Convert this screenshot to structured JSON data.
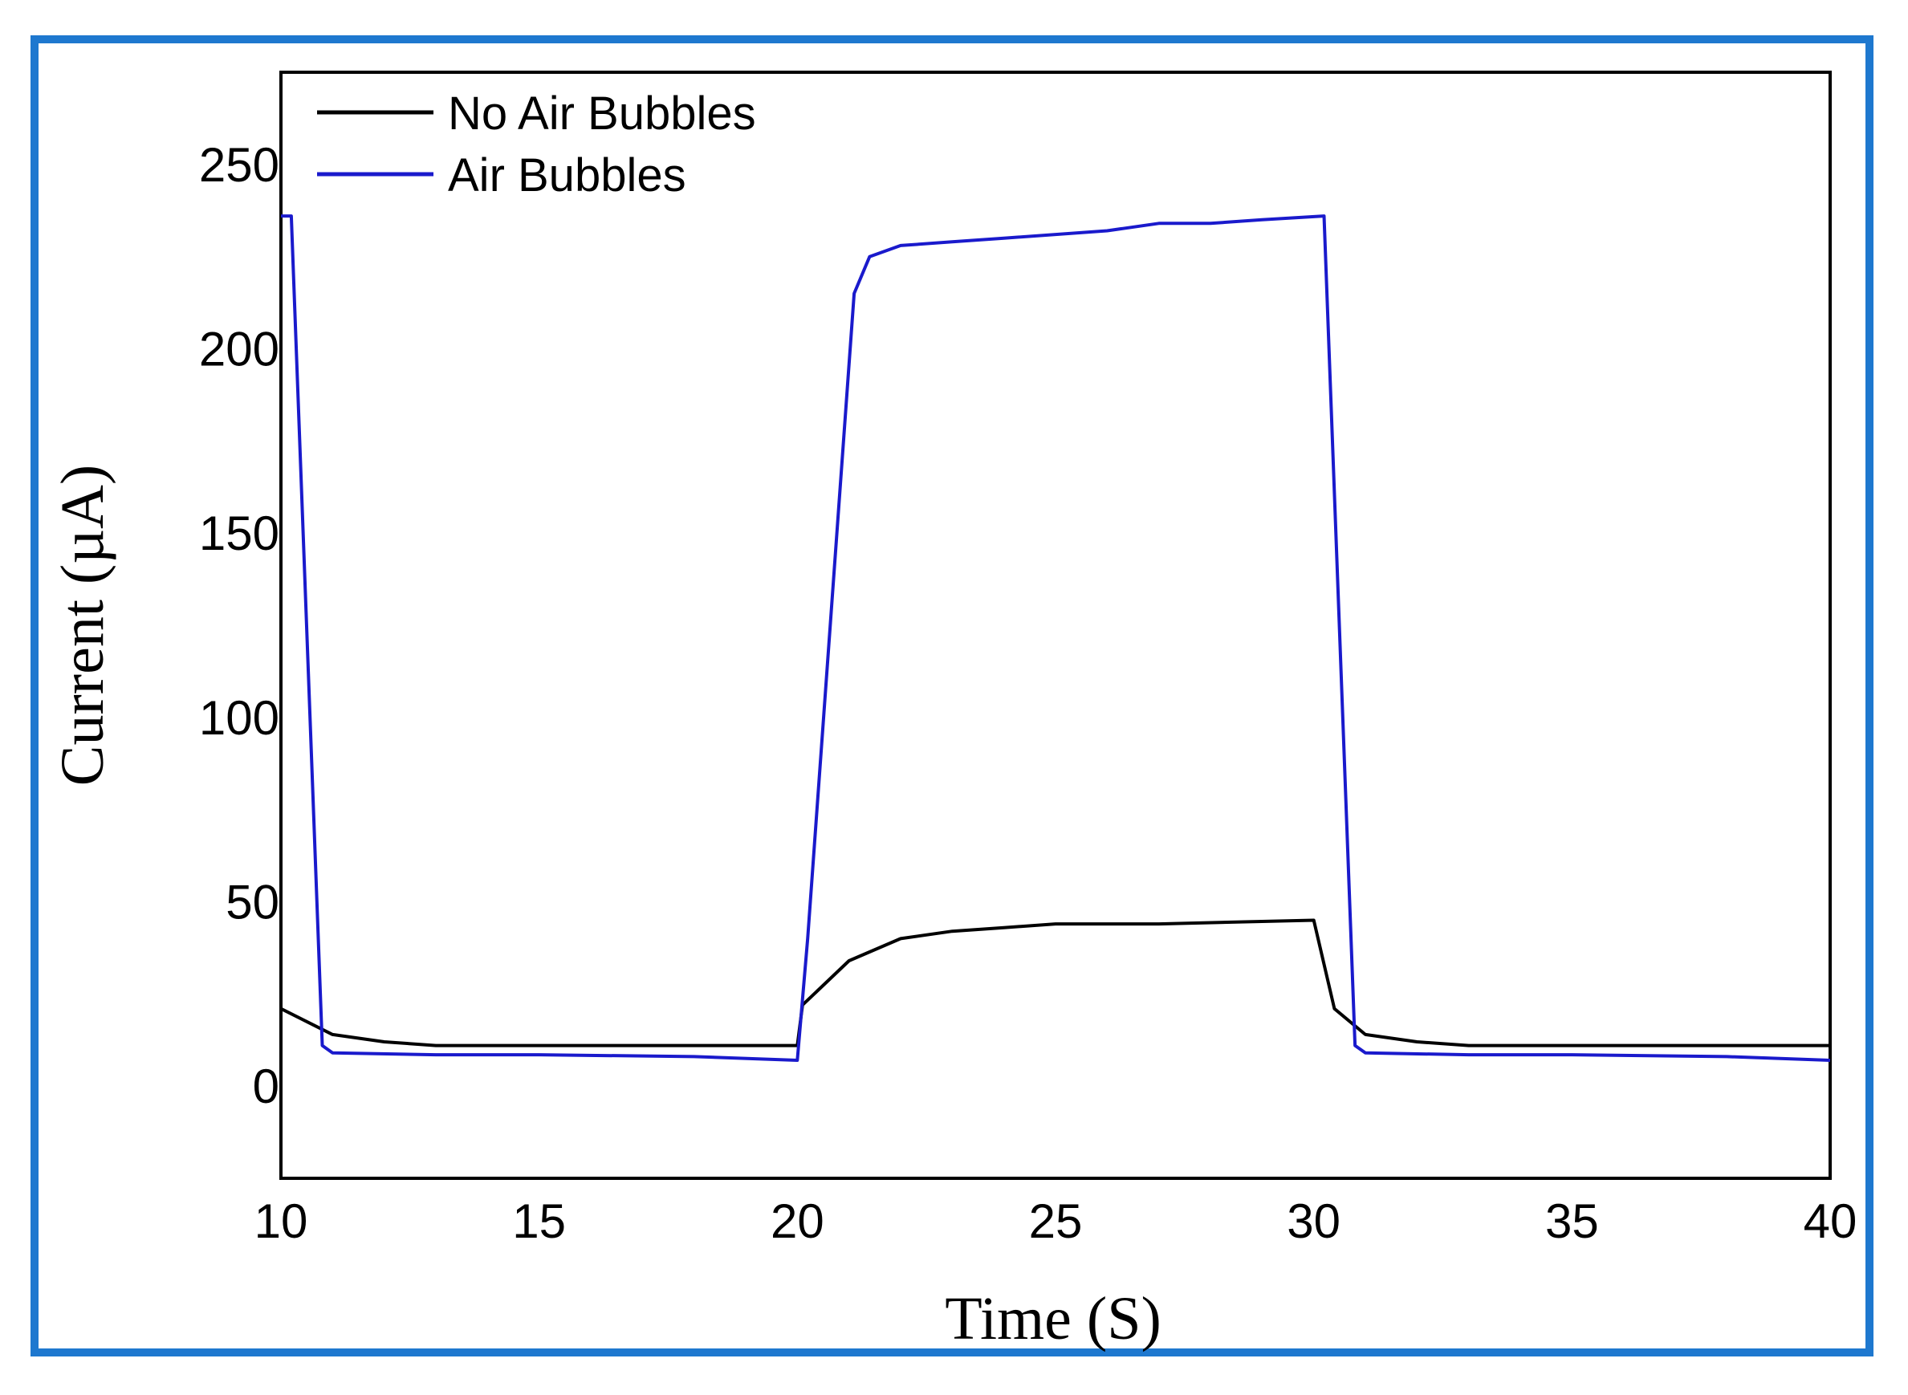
{
  "chart_data": {
    "type": "line",
    "xlabel": "Time (S)",
    "ylabel": "Current (µA)",
    "xlim": [
      10,
      40
    ],
    "ylim": [
      -25,
      275
    ],
    "xticks": [
      10,
      15,
      20,
      25,
      30,
      35,
      40
    ],
    "yticks": [
      0,
      50,
      100,
      150,
      200,
      250
    ],
    "grid": false,
    "legend_position": "top-left",
    "series": [
      {
        "name": "No Air Bubbles",
        "color": "#000000",
        "x": [
          10,
          11,
          12,
          13,
          15,
          18,
          20,
          20.1,
          21,
          22,
          23,
          24,
          25,
          27,
          30,
          30.4,
          31,
          32,
          33,
          35,
          38,
          40
        ],
        "y": [
          21,
          14,
          12,
          11,
          11,
          11,
          11,
          22,
          34,
          40,
          42,
          43,
          44,
          44,
          45,
          21,
          14,
          12,
          11,
          11,
          11,
          11
        ]
      },
      {
        "name": "Air Bubbles",
        "color": "#1a1acc",
        "x": [
          10,
          10.2,
          10.8,
          11,
          13,
          15,
          18,
          20,
          20.2,
          21.1,
          21.4,
          22,
          23,
          24,
          26,
          27,
          28,
          29,
          30.2,
          30.8,
          31,
          33,
          35,
          38,
          40
        ],
        "y": [
          236,
          236,
          11,
          9,
          8.5,
          8.5,
          8,
          7,
          40,
          215,
          225,
          228,
          229,
          230,
          232,
          234,
          234,
          235,
          236,
          11,
          9,
          8.5,
          8.5,
          8,
          7
        ]
      }
    ]
  }
}
